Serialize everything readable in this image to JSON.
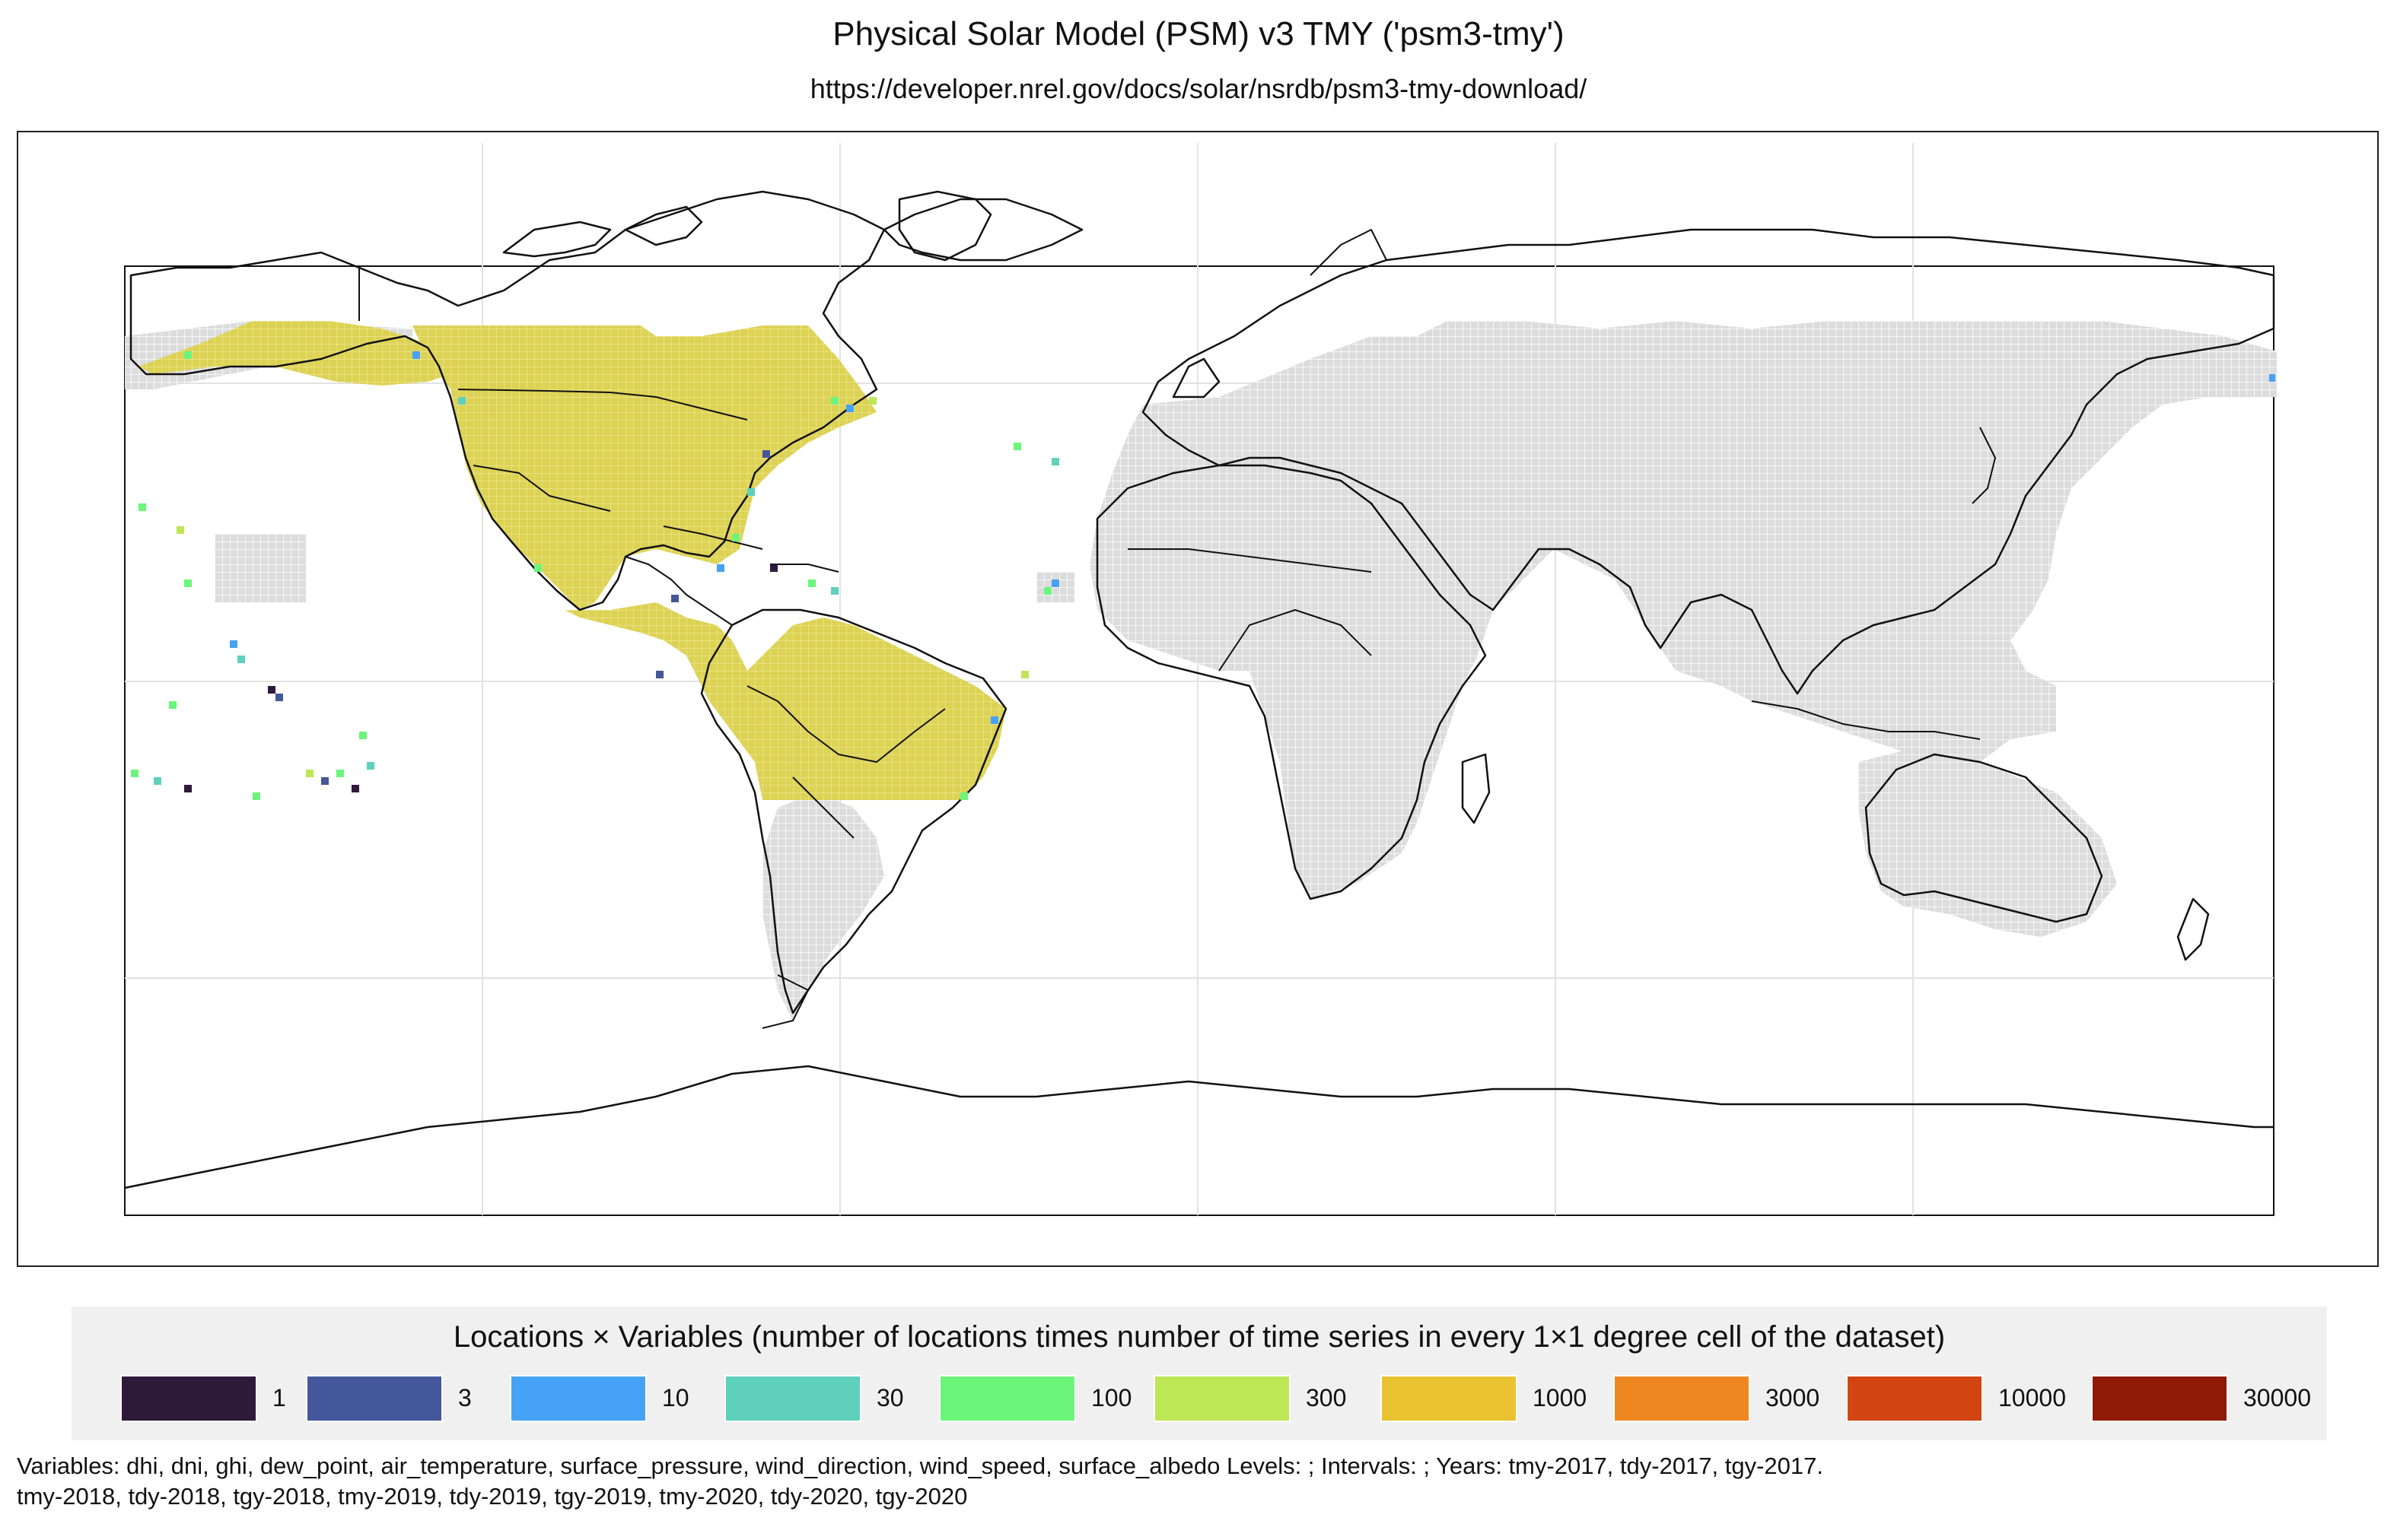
{
  "map": {
    "title": "Physical Solar Model (PSM) v3 TMY ('psm3-tmy')",
    "subtitle": "https://developer.nrel.gov/docs/solar/nsrdb/psm3-tmy-download/",
    "projection": "equirectangular",
    "colors": {
      "coverage_gray": "#dddddd",
      "americas_fill": "#dcd254",
      "coast": "#111111",
      "graticule": "#dddddd"
    }
  },
  "legend": {
    "title": "Locations × Variables (number of locations times number of time series in every 1×1 degree cell of the dataset)",
    "items": [
      {
        "label": "1",
        "color": "#2e1a3b"
      },
      {
        "label": "3",
        "color": "#44579a"
      },
      {
        "label": "10",
        "color": "#46a2f5"
      },
      {
        "label": "30",
        "color": "#5fd0bb"
      },
      {
        "label": "100",
        "color": "#6cf57b"
      },
      {
        "label": "300",
        "color": "#bde755"
      },
      {
        "label": "1000",
        "color": "#e9c430"
      },
      {
        "label": "3000",
        "color": "#ee8720"
      },
      {
        "label": "10000",
        "color": "#d24411"
      },
      {
        "label": "30000",
        "color": "#8f1a06"
      }
    ]
  },
  "footnote": {
    "line1": "Variables: dhi, dni, ghi, dew_point, air_temperature, surface_pressure, wind_direction, wind_speed, surface_albedo Levels: ; Intervals: ; Years: tmy-2017, tdy-2017, tgy-2017.",
    "line2": "tmy-2018, tdy-2018, tgy-2018, tmy-2019, tdy-2019, tgy-2019, tmy-2020, tdy-2020, tgy-2020"
  }
}
